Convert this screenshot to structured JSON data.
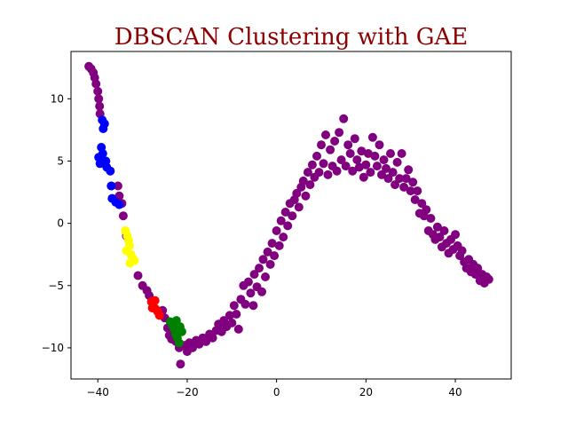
{
  "chart_data": {
    "type": "scatter",
    "title": "DBSCAN Clustering with GAE",
    "xlabel": "",
    "ylabel": "",
    "xlim": [
      -46,
      52.5
    ],
    "ylim": [
      -12.5,
      13.8
    ],
    "xticks": [
      -40,
      -20,
      0,
      20,
      40
    ],
    "yticks": [
      -10,
      -5,
      0,
      5,
      10
    ],
    "grid": false,
    "legend": "none",
    "title_color": "#8b0000",
    "series": [
      {
        "color": "#800080",
        "points": [
          [
            -42,
            12.6
          ],
          [
            -41.5,
            12.4
          ],
          [
            -41,
            12.1
          ],
          [
            -40.7,
            11.7
          ],
          [
            -40.4,
            11.2
          ],
          [
            -40,
            10.6
          ],
          [
            -39.8,
            10.0
          ],
          [
            -39.6,
            9.4
          ],
          [
            -39.5,
            8.8
          ],
          [
            -35.5,
            3.0
          ],
          [
            -35.2,
            2.2
          ],
          [
            -34.6,
            1.6
          ],
          [
            -34.3,
            0.6
          ],
          [
            -33.6,
            -1.0
          ],
          [
            -31,
            -4.2
          ],
          [
            -30,
            -5.0
          ],
          [
            -29,
            -5.4
          ],
          [
            -28.5,
            -5.8
          ],
          [
            -25.5,
            -7.0
          ],
          [
            -25,
            -7.6
          ],
          [
            -24.4,
            -8.4
          ],
          [
            -24,
            -9.0
          ],
          [
            -23.5,
            -9.3
          ],
          [
            -22.5,
            -9.5
          ],
          [
            -21.8,
            -10.0
          ],
          [
            -21.5,
            -11.3
          ],
          [
            -20.5,
            -9.8
          ],
          [
            -20,
            -10.3
          ],
          [
            -19.5,
            -9.6
          ],
          [
            -18.8,
            -10.0
          ],
          [
            -18,
            -9.4
          ],
          [
            -17.3,
            -9.7
          ],
          [
            -16.5,
            -9.2
          ],
          [
            -15.8,
            -9.5
          ],
          [
            -15,
            -8.9
          ],
          [
            -14.3,
            -9.2
          ],
          [
            -13.5,
            -8.6
          ],
          [
            -13,
            -8.1
          ],
          [
            -12.3,
            -8.7
          ],
          [
            -11.8,
            -7.8
          ],
          [
            -11.2,
            -8.3
          ],
          [
            -10.5,
            -7.4
          ],
          [
            -10,
            -8.0
          ],
          [
            -9.5,
            -6.6
          ],
          [
            -9,
            -7.3
          ],
          [
            -8.5,
            -8.5
          ],
          [
            -8,
            -6.1
          ],
          [
            -7.4,
            -5.0
          ],
          [
            -7,
            -6.5
          ],
          [
            -6.3,
            -4.7
          ],
          [
            -5.8,
            -5.6
          ],
          [
            -5.2,
            -6.6
          ],
          [
            -5,
            -4.1
          ],
          [
            -4.4,
            -5.1
          ],
          [
            -3.9,
            -3.6
          ],
          [
            -3.3,
            -5.5
          ],
          [
            -3,
            -2.9
          ],
          [
            -2.5,
            -4.3
          ],
          [
            -2,
            -2.3
          ],
          [
            -1.4,
            -3.3
          ],
          [
            -1,
            -1.6
          ],
          [
            -0.5,
            -2.6
          ],
          [
            0,
            -0.6
          ],
          [
            0.6,
            -1.8
          ],
          [
            1,
            0.2
          ],
          [
            1.5,
            -1.1
          ],
          [
            2,
            0.9
          ],
          [
            2.5,
            -0.2
          ],
          [
            3,
            1.6
          ],
          [
            3.5,
            0.6
          ],
          [
            4,
            1.9
          ],
          [
            4.5,
            2.4
          ],
          [
            5,
            1.3
          ],
          [
            5.5,
            2.9
          ],
          [
            6,
            3.4
          ],
          [
            6.5,
            2.2
          ],
          [
            7,
            4.1
          ],
          [
            7.5,
            3.1
          ],
          [
            8,
            4.7
          ],
          [
            8.5,
            3.7
          ],
          [
            9,
            5.4
          ],
          [
            9.5,
            4.1
          ],
          [
            10,
            6.3
          ],
          [
            10.5,
            4.8
          ],
          [
            11,
            7.1
          ],
          [
            11.5,
            3.9
          ],
          [
            12,
            5.9
          ],
          [
            12.5,
            4.6
          ],
          [
            13,
            6.6
          ],
          [
            13.5,
            4.2
          ],
          [
            14,
            7.3
          ],
          [
            14.5,
            5.1
          ],
          [
            15,
            8.4
          ],
          [
            15.5,
            4.6
          ],
          [
            16,
            6.3
          ],
          [
            16.5,
            5.6
          ],
          [
            17,
            4.2
          ],
          [
            17.5,
            6.8
          ],
          [
            18,
            5.1
          ],
          [
            18.5,
            4.5
          ],
          [
            19,
            5.8
          ],
          [
            19.5,
            3.7
          ],
          [
            20,
            4.7
          ],
          [
            20.5,
            5.6
          ],
          [
            21,
            4.1
          ],
          [
            21.5,
            6.9
          ],
          [
            22,
            5.4
          ],
          [
            22.5,
            4.6
          ],
          [
            23,
            6.3
          ],
          [
            23.5,
            3.9
          ],
          [
            24,
            5.1
          ],
          [
            24.5,
            4.4
          ],
          [
            25,
            3.6
          ],
          [
            25.5,
            5.6
          ],
          [
            26,
            4.1
          ],
          [
            26.5,
            3.1
          ],
          [
            27,
            4.9
          ],
          [
            27.5,
            3.6
          ],
          [
            28,
            5.6
          ],
          [
            28.5,
            2.9
          ],
          [
            29,
            3.6
          ],
          [
            29.5,
            4.3
          ],
          [
            30,
            2.6
          ],
          [
            30.5,
            3.3
          ],
          [
            31,
            1.9
          ],
          [
            31.5,
            2.6
          ],
          [
            32,
            0.8
          ],
          [
            32.5,
            1.6
          ],
          [
            33,
            0.6
          ],
          [
            33.5,
            1.1
          ],
          [
            34,
            -0.6
          ],
          [
            34.5,
            0.4
          ],
          [
            35,
            -0.9
          ],
          [
            35.5,
            -1.3
          ],
          [
            36,
            -0.3
          ],
          [
            36.5,
            -1.1
          ],
          [
            37,
            -1.9
          ],
          [
            37.5,
            -0.6
          ],
          [
            38,
            -1.6
          ],
          [
            38.5,
            -2.4
          ],
          [
            39,
            -1.3
          ],
          [
            39.5,
            -2.1
          ],
          [
            40,
            -0.9
          ],
          [
            40.5,
            -1.8
          ],
          [
            41,
            -2.6
          ],
          [
            41.5,
            -2.2
          ],
          [
            42,
            -3.1
          ],
          [
            42.5,
            -3.6
          ],
          [
            43,
            -2.9
          ],
          [
            43.5,
            -3.9
          ],
          [
            44,
            -3.3
          ],
          [
            44.5,
            -4.1
          ],
          [
            45,
            -3.6
          ],
          [
            45.5,
            -4.6
          ],
          [
            46,
            -4.1
          ],
          [
            46.5,
            -4.8
          ],
          [
            47,
            -4.3
          ],
          [
            47.5,
            -4.5
          ]
        ]
      },
      {
        "color": "#0000ff",
        "points": [
          [
            -39,
            8.3
          ],
          [
            -38.8,
            7.6
          ],
          [
            -38.5,
            8.0
          ],
          [
            -39.2,
            6.1
          ],
          [
            -38.9,
            5.6
          ],
          [
            -39.8,
            5.3
          ],
          [
            -39.5,
            4.8
          ],
          [
            -38.2,
            5.0
          ],
          [
            -38,
            4.5
          ],
          [
            -37.2,
            4.2
          ],
          [
            -37,
            3.0
          ],
          [
            -36.8,
            2.0
          ],
          [
            -36,
            1.7
          ],
          [
            -35.2,
            1.5
          ]
        ]
      },
      {
        "color": "#ffff00",
        "points": [
          [
            -33.8,
            -0.6
          ],
          [
            -33.4,
            -1.0
          ],
          [
            -33.1,
            -1.4
          ],
          [
            -32.9,
            -1.8
          ],
          [
            -33.6,
            -2.2
          ],
          [
            -32.6,
            -2.5
          ],
          [
            -32.2,
            -2.8
          ],
          [
            -32.8,
            -3.2
          ],
          [
            -31.8,
            -3.0
          ]
        ]
      },
      {
        "color": "#ff0000",
        "points": [
          [
            -28,
            -6.3
          ],
          [
            -27.6,
            -6.6
          ],
          [
            -27.2,
            -6.2
          ],
          [
            -27,
            -6.9
          ],
          [
            -26.6,
            -7.1
          ],
          [
            -26.2,
            -7.4
          ],
          [
            -27.8,
            -6.8
          ]
        ]
      },
      {
        "color": "#008000",
        "points": [
          [
            -23.8,
            -7.9
          ],
          [
            -23.3,
            -8.2
          ],
          [
            -22.9,
            -8.5
          ],
          [
            -22.6,
            -8.9
          ],
          [
            -22.2,
            -9.2
          ],
          [
            -21.8,
            -9.6
          ],
          [
            -22.4,
            -7.8
          ],
          [
            -21.6,
            -8.3
          ],
          [
            -21.2,
            -8.7
          ]
        ]
      }
    ]
  }
}
